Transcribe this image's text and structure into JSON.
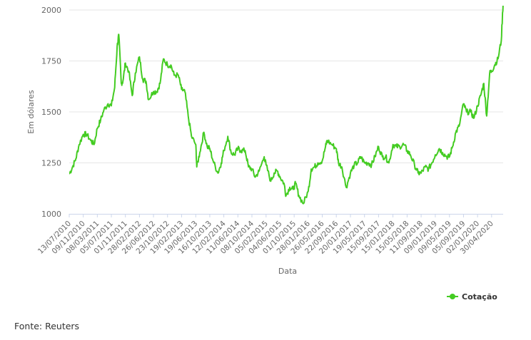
{
  "chart_data": {
    "type": "line",
    "title": "",
    "xlabel": "Data",
    "ylabel": "Em dólares",
    "ylim": [
      1000,
      2000
    ],
    "y_ticks": [
      1000,
      1250,
      1500,
      1750,
      2000
    ],
    "x_tick_labels": [
      "13/07/2010",
      "09/11/2010",
      "08/03/2011",
      "05/07/2011",
      "01/11/2011",
      "28/02/2012",
      "26/06/2012",
      "23/10/2012",
      "19/02/2013",
      "19/06/2013",
      "16/10/2013",
      "12/02/2014",
      "11/06/2014",
      "08/10/2014",
      "05/02/2015",
      "04/06/2015",
      "01/10/2015",
      "28/01/2016",
      "26/05/2016",
      "22/09/2016",
      "20/01/2017",
      "19/05/2017",
      "15/09/2017",
      "15/01/2018",
      "15/05/2018",
      "11/09/2018",
      "09/01/2019",
      "09/05/2019",
      "05/09/2019",
      "02/01/2020",
      "30/04/2020"
    ],
    "grid": true,
    "legend_position": "bottom-right",
    "series": [
      {
        "name": "Cotação",
        "color": "#44cc22",
        "x": [
          "2010-07-13",
          "2010-08-10",
          "2010-09-07",
          "2010-10-05",
          "2010-11-09",
          "2010-12-07",
          "2011-01-11",
          "2011-02-08",
          "2011-03-08",
          "2011-04-05",
          "2011-05-03",
          "2011-06-07",
          "2011-07-05",
          "2011-08-02",
          "2011-08-23",
          "2011-09-06",
          "2011-09-27",
          "2011-10-11",
          "2011-11-01",
          "2011-11-29",
          "2011-12-29",
          "2012-01-24",
          "2012-02-28",
          "2012-03-27",
          "2012-04-24",
          "2012-05-15",
          "2012-06-26",
          "2012-07-24",
          "2012-08-21",
          "2012-09-18",
          "2012-10-23",
          "2012-11-20",
          "2012-12-18",
          "2013-01-22",
          "2013-02-19",
          "2013-03-19",
          "2013-04-16",
          "2013-05-14",
          "2013-06-19",
          "2013-06-28",
          "2013-07-23",
          "2013-08-27",
          "2013-09-24",
          "2013-10-16",
          "2013-11-19",
          "2013-12-24",
          "2014-01-21",
          "2014-02-12",
          "2014-03-18",
          "2014-04-15",
          "2014-05-13",
          "2014-06-11",
          "2014-07-08",
          "2014-08-12",
          "2014-09-09",
          "2014-10-08",
          "2014-11-05",
          "2014-12-09",
          "2015-01-20",
          "2015-02-05",
          "2015-03-17",
          "2015-04-14",
          "2015-05-12",
          "2015-06-04",
          "2015-07-07",
          "2015-07-24",
          "2015-08-25",
          "2015-09-22",
          "2015-10-13",
          "2015-11-10",
          "2015-12-17",
          "2016-01-28",
          "2016-02-23",
          "2016-03-22",
          "2016-04-19",
          "2016-05-26",
          "2016-06-23",
          "2016-07-06",
          "2016-08-16",
          "2016-09-22",
          "2016-10-11",
          "2016-11-08",
          "2016-12-15",
          "2017-01-20",
          "2017-02-21",
          "2017-03-21",
          "2017-04-18",
          "2017-05-19",
          "2017-06-20",
          "2017-07-18",
          "2017-08-15",
          "2017-09-15",
          "2017-10-17",
          "2017-11-14",
          "2017-12-12",
          "2018-01-15",
          "2018-02-13",
          "2018-03-13",
          "2018-04-17",
          "2018-05-15",
          "2018-06-12",
          "2018-07-17",
          "2018-08-16",
          "2018-09-11",
          "2018-10-16",
          "2018-11-13",
          "2018-12-11",
          "2019-01-09",
          "2019-02-12",
          "2019-03-12",
          "2019-04-16",
          "2019-05-09",
          "2019-06-04",
          "2019-07-02",
          "2019-07-30",
          "2019-09-05",
          "2019-10-01",
          "2019-11-05",
          "2019-12-03",
          "2020-01-02",
          "2020-01-28",
          "2020-02-24",
          "2020-03-19",
          "2020-04-14",
          "2020-04-30",
          "2020-05-26",
          "2020-06-23",
          "2020-07-21",
          "2020-08-06"
        ],
        "values": [
          1195,
          1230,
          1270,
          1340,
          1390,
          1390,
          1360,
          1340,
          1420,
          1460,
          1510,
          1540,
          1530,
          1620,
          1820,
          1880,
          1640,
          1650,
          1740,
          1700,
          1580,
          1690,
          1770,
          1660,
          1650,
          1560,
          1600,
          1600,
          1640,
          1760,
          1730,
          1730,
          1680,
          1680,
          1610,
          1600,
          1480,
          1380,
          1340,
          1230,
          1300,
          1400,
          1330,
          1320,
          1250,
          1200,
          1250,
          1310,
          1380,
          1300,
          1290,
          1320,
          1310,
          1310,
          1230,
          1220,
          1180,
          1210,
          1280,
          1240,
          1160,
          1200,
          1210,
          1180,
          1150,
          1090,
          1130,
          1120,
          1150,
          1090,
          1050,
          1110,
          1220,
          1230,
          1250,
          1260,
          1330,
          1360,
          1340,
          1320,
          1250,
          1230,
          1130,
          1200,
          1240,
          1250,
          1280,
          1250,
          1250,
          1240,
          1280,
          1330,
          1280,
          1280,
          1250,
          1340,
          1330,
          1330,
          1340,
          1310,
          1290,
          1240,
          1200,
          1200,
          1230,
          1220,
          1250,
          1290,
          1320,
          1300,
          1280,
          1280,
          1330,
          1400,
          1430,
          1540,
          1500,
          1500,
          1470,
          1530,
          1580,
          1640,
          1480,
          1690,
          1700,
          1730,
          1760,
          1850,
          2040
        ]
      }
    ]
  },
  "source_text": "Fonte: Reuters"
}
